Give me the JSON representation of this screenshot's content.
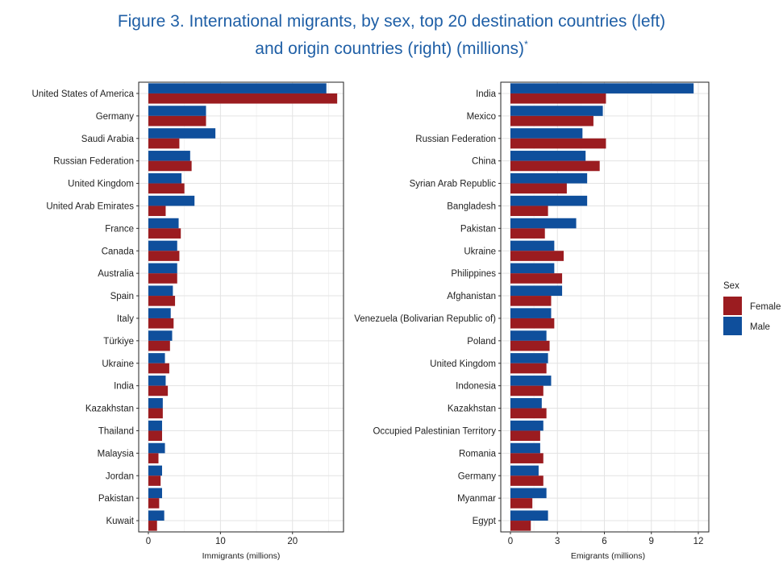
{
  "figure": {
    "title_line1": "Figure 3. International migrants, by sex, top 20 destination countries (left)",
    "title_line2": "and origin countries (right) (millions)",
    "title_mark": "*"
  },
  "colors": {
    "female": "#9b1c20",
    "male": "#0f4f9c"
  },
  "legend": {
    "title": "Sex",
    "items": [
      {
        "label": "Female",
        "color": "#9b1c20"
      },
      {
        "label": "Male",
        "color": "#0f4f9c"
      }
    ]
  },
  "chart_data": [
    {
      "type": "bar",
      "orientation": "horizontal",
      "xlabel": "Immigrants (millions)",
      "xlim": [
        0,
        27
      ],
      "xticks": [
        0,
        10,
        20
      ],
      "categories": [
        "United States of America",
        "Germany",
        "Saudi Arabia",
        "Russian Federation",
        "United Kingdom",
        "United Arab Emirates",
        "France",
        "Canada",
        "Australia",
        "Spain",
        "Italy",
        "Türkiye",
        "Ukraine",
        "India",
        "Kazakhstan",
        "Thailand",
        "Malaysia",
        "Jordan",
        "Pakistan",
        "Kuwait"
      ],
      "series": [
        {
          "name": "Male",
          "values": [
            24.7,
            8.0,
            9.3,
            5.8,
            4.6,
            6.4,
            4.2,
            4.0,
            4.0,
            3.4,
            3.1,
            3.3,
            2.3,
            2.4,
            2.0,
            1.9,
            2.3,
            1.9,
            1.9,
            2.2
          ]
        },
        {
          "name": "Female",
          "values": [
            26.2,
            8.0,
            4.3,
            6.0,
            5.0,
            2.4,
            4.5,
            4.3,
            4.0,
            3.7,
            3.5,
            3.0,
            2.9,
            2.7,
            2.0,
            1.9,
            1.4,
            1.7,
            1.5,
            1.2
          ]
        }
      ]
    },
    {
      "type": "bar",
      "orientation": "horizontal",
      "xlabel": "Emigrants (millions)",
      "xlim": [
        0,
        12
      ],
      "xticks": [
        0,
        3,
        6,
        9,
        12
      ],
      "categories": [
        "India",
        "Mexico",
        "Russian Federation",
        "China",
        "Syrian Arab Republic",
        "Bangladesh",
        "Pakistan",
        "Ukraine",
        "Philippines",
        "Afghanistan",
        "Venezuela (Bolivarian Republic of)",
        "Poland",
        "United Kingdom",
        "Indonesia",
        "Kazakhstan",
        "Occupied Palestinian Territory",
        "Romania",
        "Germany",
        "Myanmar",
        "Egypt"
      ],
      "series": [
        {
          "name": "Male",
          "values": [
            11.7,
            5.9,
            4.6,
            4.8,
            4.9,
            4.9,
            4.2,
            2.8,
            2.8,
            3.3,
            2.6,
            2.3,
            2.4,
            2.6,
            2.0,
            2.1,
            1.9,
            1.8,
            2.3,
            2.4
          ]
        },
        {
          "name": "Female",
          "values": [
            6.1,
            5.3,
            6.1,
            5.7,
            3.6,
            2.4,
            2.2,
            3.4,
            3.3,
            2.6,
            2.8,
            2.5,
            2.3,
            2.1,
            2.3,
            1.9,
            2.1,
            2.1,
            1.4,
            1.3
          ]
        }
      ]
    }
  ]
}
